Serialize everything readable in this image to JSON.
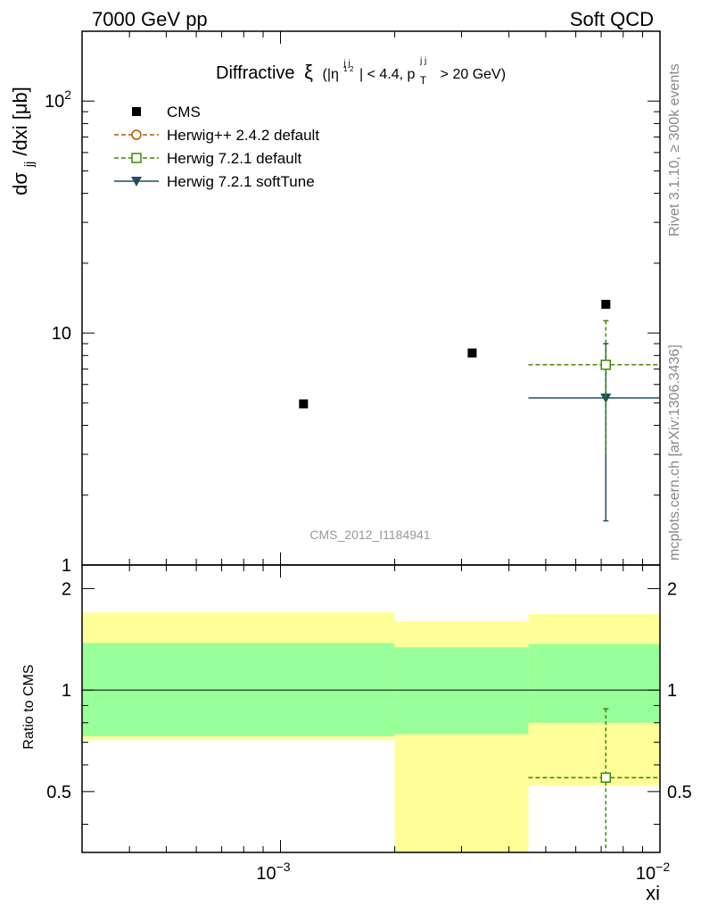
{
  "header": {
    "left": "7000 GeV pp",
    "right": "Soft QCD"
  },
  "title": {
    "main": "Diffractive",
    "symbol": "ξ",
    "cut_open": "(|η",
    "cut_sup": "j j",
    "cut_sub": "1 2",
    "cut_mid": "| < 4.4, p",
    "pt_sub": "T",
    "pt_sup": "j j",
    "cut_end": "> 20 GeV)"
  },
  "side_labels": {
    "rivet": "Rivet 3.1.10, ≥ 300k events",
    "mcplots": "mcplots.cern.ch [arXiv:1306.3436]"
  },
  "watermark": "CMS_2012_I1184941",
  "axes": {
    "ylabel_main": "dσ",
    "ylabel_main_sub": "jj",
    "ylabel_main_rest": "/dxi [μb]",
    "ylabel_ratio": "Ratio to CMS",
    "xlabel": "xi",
    "main_ticks": [
      {
        "value": 1,
        "label": "1"
      },
      {
        "value": 10,
        "label": "10"
      },
      {
        "value": 100,
        "label": "10",
        "exp": "2"
      }
    ],
    "ratio_ticks": [
      {
        "value": 0.5,
        "label": "0.5"
      },
      {
        "value": 1,
        "label": "1"
      },
      {
        "value": 2,
        "label": "2"
      }
    ],
    "x_ticks": [
      {
        "value": 0.001,
        "label": "10",
        "exp": "−3"
      },
      {
        "value": 0.01,
        "label": "10",
        "exp": "−2"
      }
    ]
  },
  "legend": [
    {
      "label": "CMS",
      "color": "#000000",
      "marker": "square-filled",
      "line": "none"
    },
    {
      "label": "Herwig++ 2.4.2 default",
      "color": "#b05a00",
      "marker": "circle-open",
      "line": "dashed"
    },
    {
      "label": "Herwig 7.2.1 default",
      "color": "#3a8a00",
      "marker": "square-open",
      "line": "dashed"
    },
    {
      "label": "Herwig 7.2.1 softTune",
      "color": "#1f4f5f",
      "marker": "triangle-down",
      "line": "solid"
    }
  ],
  "chart_data": {
    "type": "scatter",
    "xscale": "log",
    "yscale": "log",
    "xlim": [
      0.0003,
      0.01
    ],
    "ylim": [
      1,
      200
    ],
    "ratio_ylim": [
      0.33,
      2.35
    ],
    "bins": [
      {
        "xlo": 0.0003,
        "xhi": 0.002,
        "xc": 0.00115,
        "cms": 4.95,
        "band_total": [
          0.71,
          1.7
        ],
        "band_stat": [
          0.73,
          1.38
        ]
      },
      {
        "xlo": 0.002,
        "xhi": 0.0045,
        "xc": 0.0032,
        "cms": 8.2,
        "band_total": [
          0.33,
          1.6
        ],
        "band_stat": [
          0.74,
          1.34
        ]
      },
      {
        "xlo": 0.0045,
        "xhi": 0.01,
        "xc": 0.0072,
        "cms": 13.3,
        "band_total": [
          0.52,
          1.68
        ],
        "band_stat": [
          0.8,
          1.37
        ]
      }
    ],
    "series": [
      {
        "name": "CMS",
        "points": [
          {
            "x": 0.00115,
            "y": 4.95
          },
          {
            "x": 0.0032,
            "y": 8.2
          },
          {
            "x": 0.0072,
            "y": 13.3
          }
        ]
      },
      {
        "name": "Herwig 7.2.1 default",
        "points": [
          {
            "x": 0.0072,
            "y": 7.3,
            "xlo": 0.0045,
            "xhi": 0.01,
            "ylo": 3.0,
            "yhi": 11.3
          }
        ],
        "ratio": [
          {
            "x": 0.0072,
            "y": 0.55,
            "xlo": 0.0045,
            "xhi": 0.01,
            "ylo": 0.33,
            "yhi": 0.88
          }
        ]
      },
      {
        "name": "Herwig 7.2.1 softTune",
        "points": [
          {
            "x": 0.0072,
            "y": 5.25,
            "xlo": 0.0045,
            "xhi": 0.01,
            "ylo": 1.55,
            "yhi": 9.0
          }
        ]
      }
    ],
    "colors": {
      "band_total": "#ffff99",
      "band_stat": "#99ff99",
      "herwig721_default": "#3a8a00",
      "herwig721_softtune": "#1f4f5f"
    }
  }
}
